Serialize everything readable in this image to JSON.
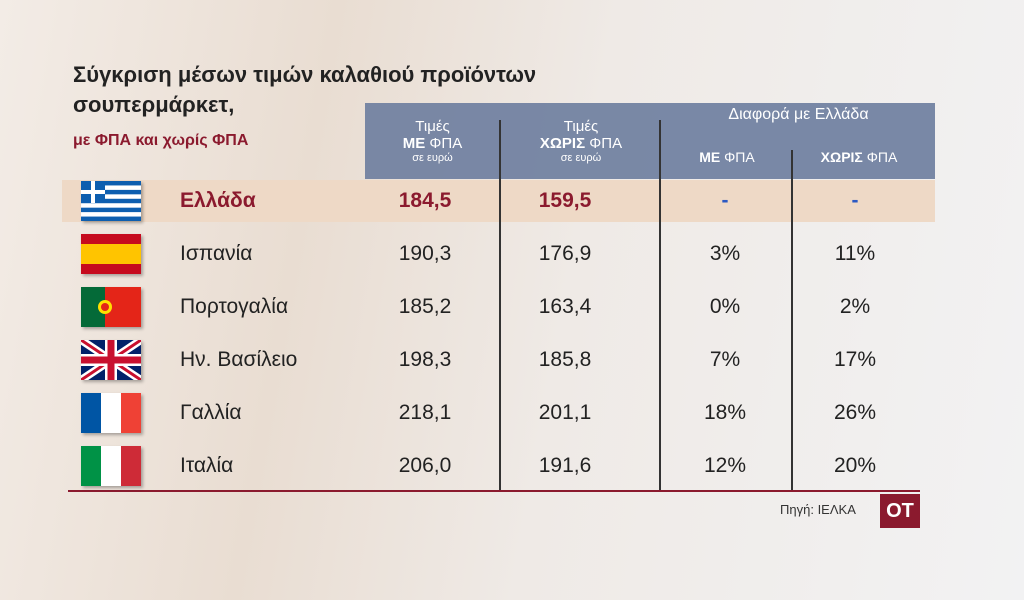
{
  "header": {
    "title_line1": "Σύγκριση μέσων τιμών καλαθιού προϊόντων",
    "title_line2": "σουπερμάρκετ,",
    "subtitle": "με ΦΠΑ και χωρίς ΦΠΑ"
  },
  "columns": {
    "with_vat": {
      "top": "Τιμές",
      "bold": "ΜΕ",
      "rest": "ΦΠΑ",
      "unit": "σε ευρώ"
    },
    "without_vat": {
      "top": "Τιμές",
      "bold": "ΧΩΡΙΣ",
      "rest": "ΦΠΑ",
      "unit": "σε ευρώ"
    },
    "difference": {
      "title": "Διαφορά με Ελλάδα",
      "with_vat": {
        "bold": "ΜΕ",
        "rest": "ΦΠΑ"
      },
      "without_vat": {
        "bold": "ΧΩΡΙΣ",
        "rest": "ΦΠΑ"
      }
    }
  },
  "table": {
    "rows": [
      [
        "Ελλάδα",
        "184,5",
        "159,5",
        "-",
        "-"
      ],
      [
        "Ισπανία",
        "190,3",
        "176,9",
        "3%",
        "11%"
      ],
      [
        "Πορτογαλία",
        "185,2",
        "163,4",
        "0%",
        "2%"
      ],
      [
        "Ην. Βασίλειο",
        "198,3",
        "185,8",
        "7%",
        "17%"
      ],
      [
        "Γαλλία",
        "218,1",
        "201,1",
        "18%",
        "26%"
      ],
      [
        "Ιταλία",
        "206,0",
        "191,6",
        "12%",
        "20%"
      ]
    ]
  },
  "footer": {
    "source": "Πηγή: ΙΕΛΚΑ",
    "logo": "OT"
  }
}
